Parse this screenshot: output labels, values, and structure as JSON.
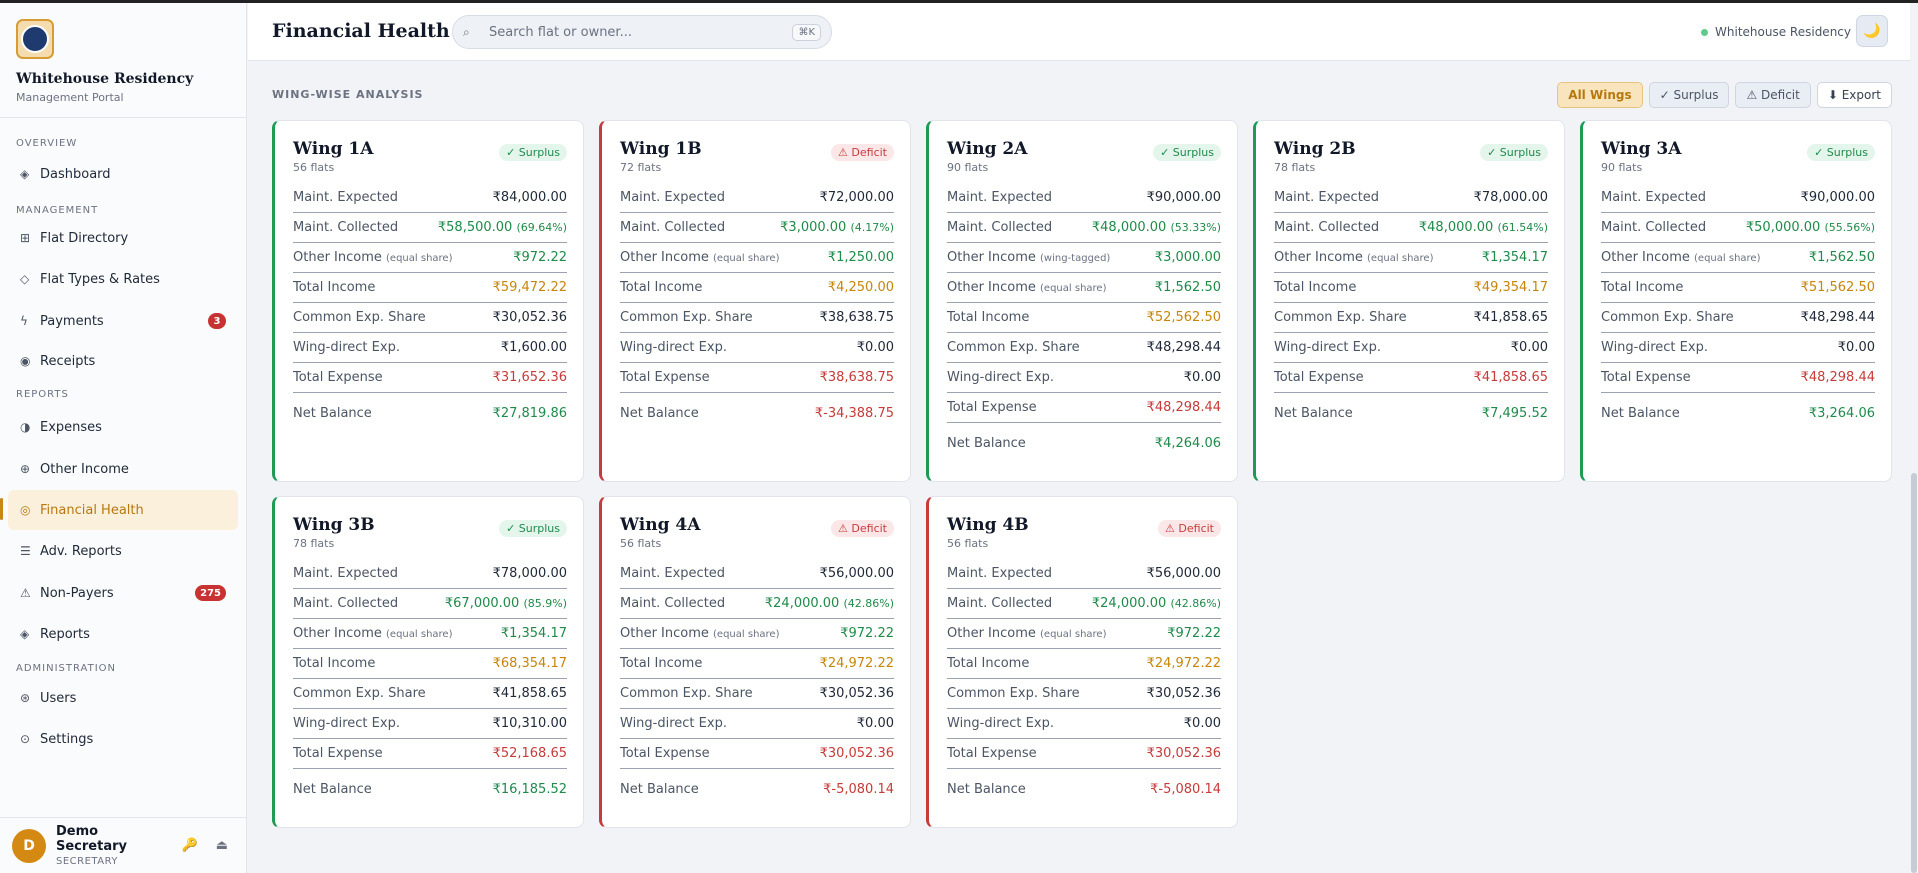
{
  "sidebar": {
    "brand_name": "Whitehouse Residency",
    "brand_sub": "Management Portal",
    "sections": {
      "overview": "OVERVIEW",
      "management": "MANAGEMENT",
      "reports": "REPORTS",
      "administration": "ADMINISTRATION"
    },
    "items": {
      "dashboard": "Dashboard",
      "flat_directory": "Flat Directory",
      "flat_types": "Flat Types & Rates",
      "payments": "Payments",
      "payments_badge": "3",
      "receipts": "Receipts",
      "expenses": "Expenses",
      "other_income": "Other Income",
      "financial_health": "Financial Health",
      "adv_reports": "Adv. Reports",
      "non_payers": "Non-Payers",
      "non_payers_badge": "275",
      "reports": "Reports",
      "users": "Users",
      "settings": "Settings"
    },
    "user": {
      "initial": "D",
      "name": "Demo Secretary",
      "role": "SECRETARY"
    }
  },
  "header": {
    "title": "Financial Health",
    "search_placeholder": "Search flat or owner...",
    "search_shortcut": "⌘K",
    "residency": "Whitehouse Residency",
    "theme_icon": "🌙"
  },
  "main": {
    "section_title": "WING-WISE ANALYSIS",
    "filters": {
      "all": "All Wings",
      "surplus": "✓ Surplus",
      "deficit": "⚠ Deficit",
      "export": "⬇ Export"
    }
  },
  "labels": {
    "maint_expected": "Maint. Expected",
    "maint_collected": "Maint. Collected",
    "other_income": "Other Income",
    "equal_share": "(equal share)",
    "wing_tagged": "(wing-tagged)",
    "total_income": "Total Income",
    "common_exp": "Common Exp. Share",
    "wing_direct": "Wing-direct Exp.",
    "total_expense": "Total Expense",
    "net_balance": "Net Balance"
  },
  "wings": [
    {
      "name": "Wing 1A",
      "flats": "56 flats",
      "status": "✓ Surplus",
      "expected": "₹84,000.00",
      "collected": "₹58,500.00",
      "pct": "(69.64%)",
      "other": "₹972.22",
      "total_income": "₹59,472.22",
      "common": "₹30,052.36",
      "direct": "₹1,600.00",
      "total_expense": "₹31,652.36",
      "net": "₹27,819.86"
    },
    {
      "name": "Wing 1B",
      "flats": "72 flats",
      "status": "⚠ Deficit",
      "expected": "₹72,000.00",
      "collected": "₹3,000.00",
      "pct": "(4.17%)",
      "other": "₹1,250.00",
      "total_income": "₹4,250.00",
      "common": "₹38,638.75",
      "direct": "₹0.00",
      "total_expense": "₹38,638.75",
      "net": "₹-34,388.75"
    },
    {
      "name": "Wing 2A",
      "flats": "90 flats",
      "status": "✓ Surplus",
      "expected": "₹90,000.00",
      "collected": "₹48,000.00",
      "pct": "(53.33%)",
      "other_tagged": "₹3,000.00",
      "other": "₹1,562.50",
      "total_income": "₹52,562.50",
      "common": "₹48,298.44",
      "direct": "₹0.00",
      "total_expense": "₹48,298.44",
      "net": "₹4,264.06"
    },
    {
      "name": "Wing 2B",
      "flats": "78 flats",
      "status": "✓ Surplus",
      "expected": "₹78,000.00",
      "collected": "₹48,000.00",
      "pct": "(61.54%)",
      "other": "₹1,354.17",
      "total_income": "₹49,354.17",
      "common": "₹41,858.65",
      "direct": "₹0.00",
      "total_expense": "₹41,858.65",
      "net": "₹7,495.52"
    },
    {
      "name": "Wing 3A",
      "flats": "90 flats",
      "status": "✓ Surplus",
      "expected": "₹90,000.00",
      "collected": "₹50,000.00",
      "pct": "(55.56%)",
      "other": "₹1,562.50",
      "total_income": "₹51,562.50",
      "common": "₹48,298.44",
      "direct": "₹0.00",
      "total_expense": "₹48,298.44",
      "net": "₹3,264.06"
    },
    {
      "name": "Wing 3B",
      "flats": "78 flats",
      "status": "✓ Surplus",
      "expected": "₹78,000.00",
      "collected": "₹67,000.00",
      "pct": "(85.9%)",
      "other": "₹1,354.17",
      "total_income": "₹68,354.17",
      "common": "₹41,858.65",
      "direct": "₹10,310.00",
      "total_expense": "₹52,168.65",
      "net": "₹16,185.52"
    },
    {
      "name": "Wing 4A",
      "flats": "56 flats",
      "status": "⚠ Deficit",
      "expected": "₹56,000.00",
      "collected": "₹24,000.00",
      "pct": "(42.86%)",
      "other": "₹972.22",
      "total_income": "₹24,972.22",
      "common": "₹30,052.36",
      "direct": "₹0.00",
      "total_expense": "₹30,052.36",
      "net": "₹-5,080.14"
    },
    {
      "name": "Wing 4B",
      "flats": "56 flats",
      "status": "⚠ Deficit",
      "expected": "₹56,000.00",
      "collected": "₹24,000.00",
      "pct": "(42.86%)",
      "other": "₹972.22",
      "total_income": "₹24,972.22",
      "common": "₹30,052.36",
      "direct": "₹0.00",
      "total_expense": "₹30,052.36",
      "net": "₹-5,080.14"
    }
  ]
}
